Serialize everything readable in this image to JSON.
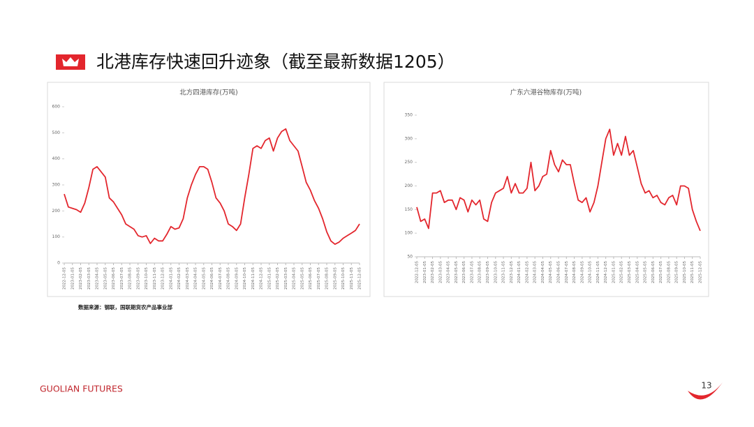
{
  "header": {
    "title": "北港库存快速回升迹象（截至最新数据1205）"
  },
  "source": "数据来源：钢联，国联期货农产品事业部",
  "footer": {
    "brand": "GUOLIAN FUTURES",
    "page": "13"
  },
  "chart_data": [
    {
      "type": "line",
      "title": "北方四港库存(万吨)",
      "categories": [
        "2022-12-05",
        null,
        "2023-01-05",
        null,
        "2023-02-05",
        null,
        "2023-03-05",
        null,
        "2023-04-05",
        null,
        "2023-05-05",
        null,
        "2023-06-05",
        null,
        "2023-07-05",
        null,
        "2023-08-05",
        null,
        "2023-09-05",
        null,
        "2023-10-05",
        null,
        "2023-11-05",
        null,
        "2023-12-05",
        null,
        "2024-01-05",
        null,
        "2024-02-05",
        null,
        "2024-03-05",
        null,
        "2024-04-05",
        null,
        "2024-05-05",
        null,
        "2024-06-05",
        null,
        "2024-07-05",
        null,
        "2024-08-05",
        null,
        "2024-09-05",
        null,
        "2024-10-05",
        null,
        "2024-11-05",
        null,
        "2024-12-05",
        null,
        "2025-01-05",
        null,
        "2025-02-05",
        null,
        "2025-03-05",
        null,
        "2025-04-05",
        null,
        "2025-05-05",
        null,
        "2025-06-05",
        null,
        "2025-07-05",
        null,
        "2025-08-05",
        null,
        "2025-09-05",
        null,
        "2025-10-05",
        null,
        "2025-11-05",
        null,
        "2025-12-05"
      ],
      "values": [
        265,
        215,
        210,
        205,
        195,
        230,
        290,
        360,
        370,
        350,
        330,
        250,
        235,
        210,
        185,
        150,
        140,
        130,
        105,
        100,
        105,
        75,
        95,
        85,
        85,
        110,
        140,
        130,
        135,
        170,
        250,
        300,
        340,
        370,
        370,
        360,
        310,
        250,
        230,
        200,
        150,
        140,
        125,
        150,
        250,
        340,
        440,
        450,
        440,
        470,
        480,
        430,
        480,
        505,
        515,
        470,
        450,
        430,
        370,
        310,
        280,
        240,
        210,
        170,
        120,
        85,
        72,
        80,
        95,
        105,
        115,
        125,
        150
      ],
      "color": "#e3262d",
      "ylim": [
        0,
        600
      ],
      "yticks": [
        0,
        100,
        200,
        300,
        400,
        500,
        600
      ]
    },
    {
      "type": "line",
      "title": "广东六港谷物库存(万吨)",
      "categories": [
        "2022-12-05",
        null,
        "2023-01-05",
        null,
        "2023-02-05",
        null,
        "2023-03-05",
        null,
        "2023-04-05",
        null,
        "2023-05-05",
        null,
        "2023-06-05",
        null,
        "2023-07-05",
        null,
        "2023-08-05",
        null,
        "2023-09-05",
        null,
        "2023-10-05",
        null,
        "2023-11-05",
        null,
        "2023-12-05",
        null,
        "2024-01-05",
        null,
        "2024-02-05",
        null,
        "2024-03-05",
        null,
        "2024-04-05",
        null,
        "2024-05-05",
        null,
        "2024-06-05",
        null,
        "2024-07-05",
        null,
        "2024-08-05",
        null,
        "2024-09-05",
        null,
        "2024-10-05",
        null,
        "2024-11-05",
        null,
        "2024-12-05",
        null,
        "2025-01-05",
        null,
        "2025-02-05",
        null,
        "2025-03-05",
        null,
        "2025-04-05",
        null,
        "2025-05-05",
        null,
        "2025-06-05",
        null,
        "2025-07-05",
        null,
        "2025-08-05",
        null,
        "2025-09-05",
        null,
        "2025-10-05",
        null,
        "2025-11-05",
        null,
        "2025-12-05"
      ],
      "values": [
        155,
        125,
        130,
        110,
        185,
        185,
        190,
        165,
        170,
        170,
        150,
        175,
        170,
        145,
        170,
        160,
        170,
        130,
        125,
        165,
        185,
        190,
        195,
        220,
        185,
        205,
        185,
        185,
        195,
        250,
        190,
        200,
        220,
        225,
        275,
        245,
        230,
        255,
        245,
        245,
        205,
        170,
        165,
        175,
        145,
        165,
        200,
        250,
        300,
        320,
        265,
        290,
        265,
        305,
        265,
        275,
        240,
        205,
        185,
        190,
        175,
        180,
        165,
        160,
        175,
        180,
        160,
        200,
        200,
        195,
        150,
        125,
        105
      ],
      "color": "#e3262d",
      "ylim": [
        50,
        350
      ],
      "yticks": [
        50,
        100,
        150,
        200,
        250,
        300,
        350
      ]
    }
  ]
}
